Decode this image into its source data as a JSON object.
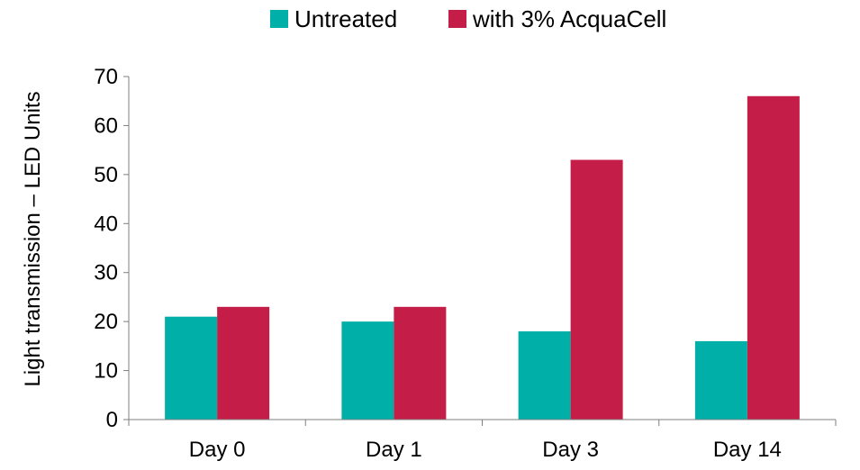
{
  "chart_data": {
    "type": "bar",
    "categories": [
      "Day 0",
      "Day 1",
      "Day 3",
      "Day 14"
    ],
    "series": [
      {
        "name": "Untreated",
        "values": [
          21,
          20,
          18,
          16
        ],
        "color": "#00b0a8"
      },
      {
        "name": "with 3% AcquaCell",
        "values": [
          23,
          23,
          53,
          66
        ],
        "color": "#c41e48"
      }
    ],
    "title": "",
    "xlabel": "",
    "ylabel": "Light transmission – LED Units",
    "ylim": [
      0,
      70
    ],
    "yticks": [
      0,
      10,
      20,
      30,
      40,
      50,
      60,
      70
    ],
    "grid": false,
    "legend_position": "top-center"
  }
}
